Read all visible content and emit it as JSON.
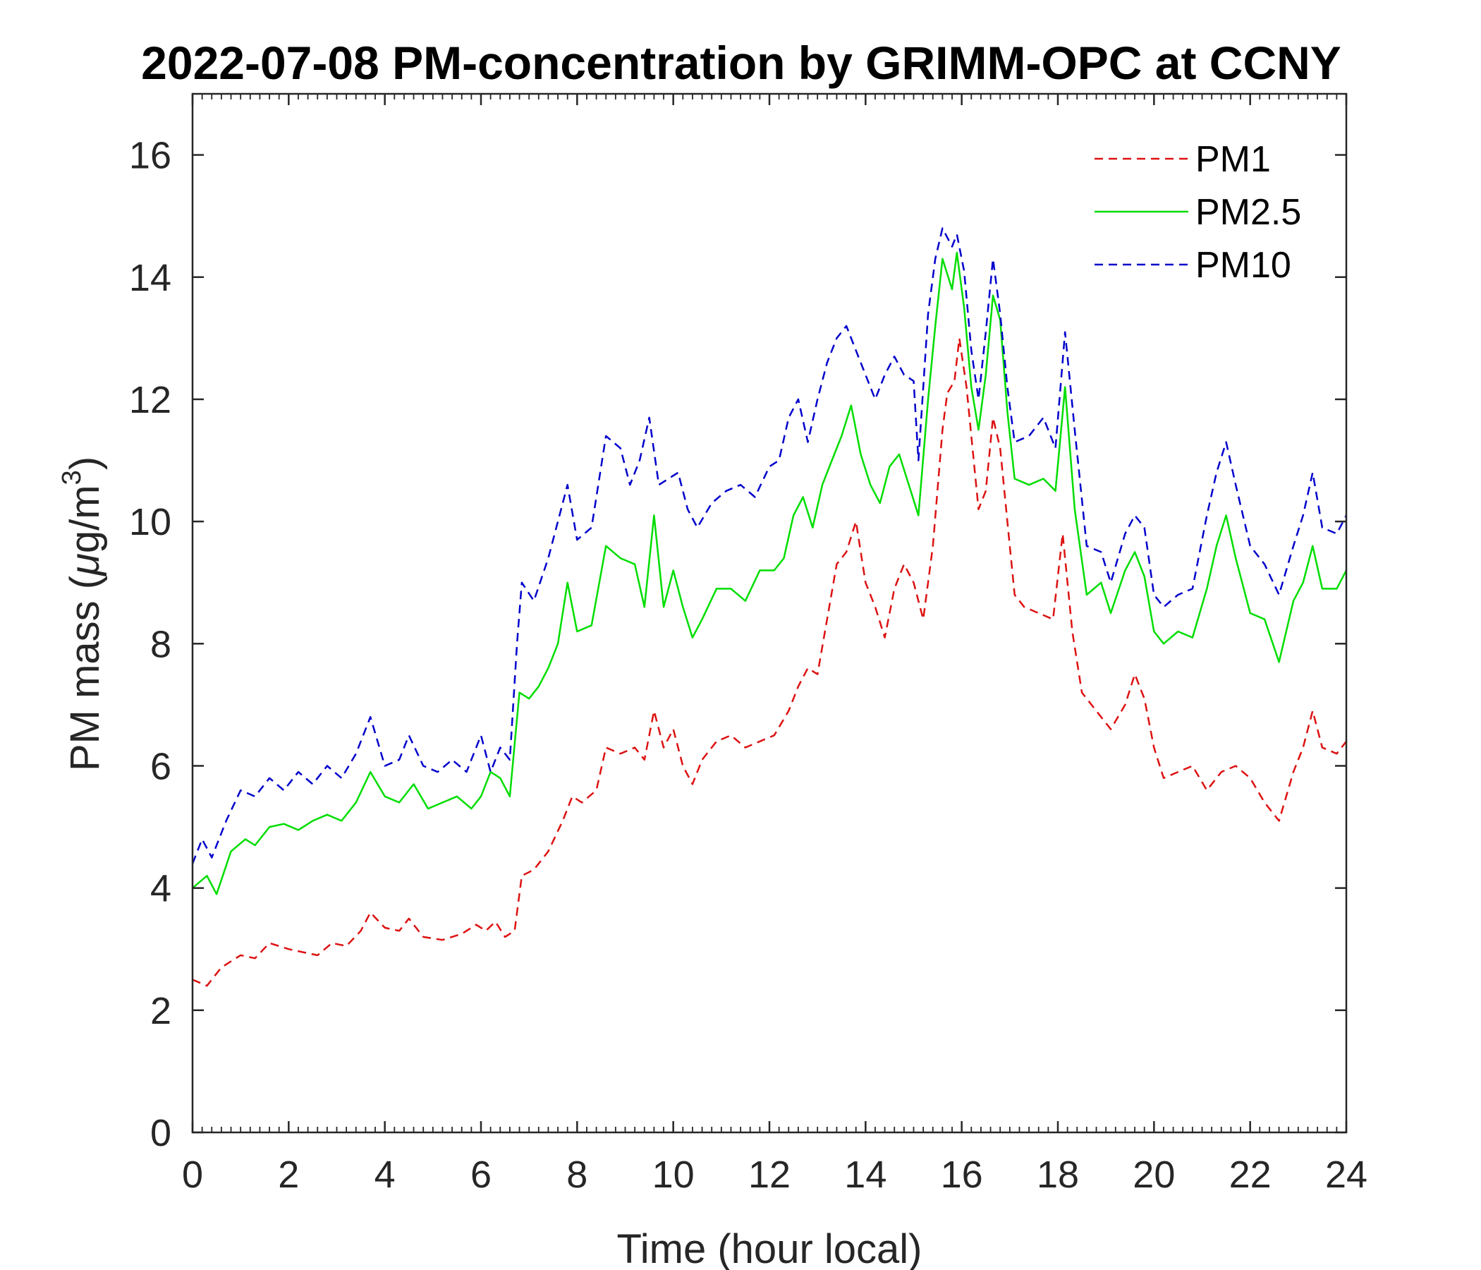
{
  "chart_data": {
    "type": "line",
    "title": "2022-07-08 PM-concentration by GRIMM-OPC at CCNY",
    "xlabel": "Time (hour local)",
    "ylabel_main": "PM mass (",
    "ylabel_mu": "μ",
    "ylabel_unit": "g/m",
    "ylabel_sup": "3",
    "ylabel_close": ")",
    "xlim": [
      0,
      24
    ],
    "ylim": [
      0,
      17
    ],
    "xticks": [
      0,
      2,
      4,
      6,
      8,
      10,
      12,
      14,
      16,
      18,
      20,
      22,
      24
    ],
    "yticks": [
      0,
      2,
      4,
      6,
      8,
      10,
      12,
      14,
      16
    ],
    "xtick_labels": [
      "0",
      "2",
      "4",
      "6",
      "8",
      "10",
      "12",
      "14",
      "16",
      "18",
      "20",
      "22",
      "24"
    ],
    "ytick_labels": [
      "0",
      "2",
      "4",
      "6",
      "8",
      "10",
      "12",
      "14",
      "16"
    ],
    "grid": false,
    "legend_position": "top-right",
    "series": [
      {
        "name": "PM1",
        "color": "#dd1111",
        "dashed": true,
        "points": [
          [
            0,
            2.5
          ],
          [
            0.3,
            2.4
          ],
          [
            0.6,
            2.7
          ],
          [
            1.0,
            2.9
          ],
          [
            1.3,
            2.85
          ],
          [
            1.6,
            3.1
          ],
          [
            2.0,
            3.0
          ],
          [
            2.3,
            2.95
          ],
          [
            2.6,
            2.9
          ],
          [
            2.9,
            3.1
          ],
          [
            3.2,
            3.05
          ],
          [
            3.5,
            3.3
          ],
          [
            3.7,
            3.6
          ],
          [
            4.0,
            3.35
          ],
          [
            4.3,
            3.3
          ],
          [
            4.5,
            3.5
          ],
          [
            4.8,
            3.2
          ],
          [
            5.2,
            3.15
          ],
          [
            5.6,
            3.25
          ],
          [
            5.9,
            3.4
          ],
          [
            6.1,
            3.3
          ],
          [
            6.3,
            3.45
          ],
          [
            6.5,
            3.2
          ],
          [
            6.7,
            3.3
          ],
          [
            6.85,
            4.2
          ],
          [
            7.1,
            4.3
          ],
          [
            7.4,
            4.6
          ],
          [
            7.7,
            5.1
          ],
          [
            7.9,
            5.5
          ],
          [
            8.1,
            5.4
          ],
          [
            8.4,
            5.6
          ],
          [
            8.6,
            6.3
          ],
          [
            8.9,
            6.2
          ],
          [
            9.2,
            6.3
          ],
          [
            9.4,
            6.1
          ],
          [
            9.6,
            6.9
          ],
          [
            9.8,
            6.3
          ],
          [
            10.0,
            6.6
          ],
          [
            10.2,
            6.0
          ],
          [
            10.4,
            5.7
          ],
          [
            10.6,
            6.1
          ],
          [
            10.9,
            6.4
          ],
          [
            11.2,
            6.5
          ],
          [
            11.5,
            6.3
          ],
          [
            11.8,
            6.4
          ],
          [
            12.1,
            6.5
          ],
          [
            12.4,
            6.9
          ],
          [
            12.6,
            7.3
          ],
          [
            12.8,
            7.6
          ],
          [
            13.0,
            7.5
          ],
          [
            13.2,
            8.4
          ],
          [
            13.4,
            9.3
          ],
          [
            13.6,
            9.5
          ],
          [
            13.8,
            10.0
          ],
          [
            14.0,
            9.0
          ],
          [
            14.2,
            8.6
          ],
          [
            14.4,
            8.1
          ],
          [
            14.6,
            8.9
          ],
          [
            14.8,
            9.3
          ],
          [
            15.0,
            9.0
          ],
          [
            15.2,
            8.4
          ],
          [
            15.4,
            9.6
          ],
          [
            15.6,
            11.5
          ],
          [
            15.7,
            12.1
          ],
          [
            15.85,
            12.3
          ],
          [
            15.95,
            13.0
          ],
          [
            16.1,
            12.2
          ],
          [
            16.25,
            11.0
          ],
          [
            16.35,
            10.2
          ],
          [
            16.5,
            10.5
          ],
          [
            16.65,
            11.7
          ],
          [
            16.8,
            11.2
          ],
          [
            16.95,
            10.0
          ],
          [
            17.1,
            8.8
          ],
          [
            17.3,
            8.6
          ],
          [
            17.6,
            8.5
          ],
          [
            17.9,
            8.4
          ],
          [
            18.1,
            9.8
          ],
          [
            18.3,
            8.2
          ],
          [
            18.5,
            7.2
          ],
          [
            18.8,
            6.9
          ],
          [
            19.1,
            6.6
          ],
          [
            19.4,
            7.0
          ],
          [
            19.6,
            7.5
          ],
          [
            19.8,
            7.1
          ],
          [
            20.0,
            6.3
          ],
          [
            20.2,
            5.8
          ],
          [
            20.5,
            5.9
          ],
          [
            20.8,
            6.0
          ],
          [
            21.1,
            5.6
          ],
          [
            21.4,
            5.9
          ],
          [
            21.7,
            6.0
          ],
          [
            22.0,
            5.8
          ],
          [
            22.3,
            5.4
          ],
          [
            22.6,
            5.1
          ],
          [
            22.9,
            5.9
          ],
          [
            23.1,
            6.3
          ],
          [
            23.3,
            6.9
          ],
          [
            23.5,
            6.3
          ],
          [
            23.8,
            6.2
          ],
          [
            24.0,
            6.4
          ]
        ]
      },
      {
        "name": "PM2.5",
        "color": "#00dd00",
        "dashed": false,
        "points": [
          [
            0,
            4.0
          ],
          [
            0.3,
            4.2
          ],
          [
            0.5,
            3.9
          ],
          [
            0.8,
            4.6
          ],
          [
            1.1,
            4.8
          ],
          [
            1.3,
            4.7
          ],
          [
            1.6,
            5.0
          ],
          [
            1.9,
            5.05
          ],
          [
            2.2,
            4.95
          ],
          [
            2.5,
            5.1
          ],
          [
            2.8,
            5.2
          ],
          [
            3.1,
            5.1
          ],
          [
            3.4,
            5.4
          ],
          [
            3.7,
            5.9
          ],
          [
            4.0,
            5.5
          ],
          [
            4.3,
            5.4
          ],
          [
            4.6,
            5.7
          ],
          [
            4.9,
            5.3
          ],
          [
            5.2,
            5.4
          ],
          [
            5.5,
            5.5
          ],
          [
            5.8,
            5.3
          ],
          [
            6.0,
            5.5
          ],
          [
            6.2,
            5.9
          ],
          [
            6.4,
            5.8
          ],
          [
            6.6,
            5.5
          ],
          [
            6.8,
            7.2
          ],
          [
            7.0,
            7.1
          ],
          [
            7.2,
            7.3
          ],
          [
            7.4,
            7.6
          ],
          [
            7.6,
            8.0
          ],
          [
            7.8,
            9.0
          ],
          [
            8.0,
            8.2
          ],
          [
            8.3,
            8.3
          ],
          [
            8.6,
            9.6
          ],
          [
            8.9,
            9.4
          ],
          [
            9.2,
            9.3
          ],
          [
            9.4,
            8.6
          ],
          [
            9.6,
            10.1
          ],
          [
            9.8,
            8.6
          ],
          [
            10.0,
            9.2
          ],
          [
            10.2,
            8.6
          ],
          [
            10.4,
            8.1
          ],
          [
            10.6,
            8.4
          ],
          [
            10.9,
            8.9
          ],
          [
            11.2,
            8.9
          ],
          [
            11.5,
            8.7
          ],
          [
            11.8,
            9.2
          ],
          [
            12.1,
            9.2
          ],
          [
            12.3,
            9.4
          ],
          [
            12.5,
            10.1
          ],
          [
            12.7,
            10.4
          ],
          [
            12.9,
            9.9
          ],
          [
            13.1,
            10.6
          ],
          [
            13.3,
            11.0
          ],
          [
            13.5,
            11.4
          ],
          [
            13.7,
            11.9
          ],
          [
            13.9,
            11.1
          ],
          [
            14.1,
            10.6
          ],
          [
            14.3,
            10.3
          ],
          [
            14.5,
            10.9
          ],
          [
            14.7,
            11.1
          ],
          [
            14.9,
            10.6
          ],
          [
            15.1,
            10.1
          ],
          [
            15.3,
            12.0
          ],
          [
            15.45,
            13.2
          ],
          [
            15.6,
            14.3
          ],
          [
            15.8,
            13.8
          ],
          [
            15.9,
            14.4
          ],
          [
            16.05,
            13.5
          ],
          [
            16.2,
            12.2
          ],
          [
            16.35,
            11.5
          ],
          [
            16.5,
            12.4
          ],
          [
            16.65,
            13.7
          ],
          [
            16.8,
            13.3
          ],
          [
            16.95,
            11.8
          ],
          [
            17.1,
            10.7
          ],
          [
            17.4,
            10.6
          ],
          [
            17.7,
            10.7
          ],
          [
            17.95,
            10.5
          ],
          [
            18.15,
            12.2
          ],
          [
            18.35,
            10.2
          ],
          [
            18.6,
            8.8
          ],
          [
            18.9,
            9.0
          ],
          [
            19.1,
            8.5
          ],
          [
            19.4,
            9.2
          ],
          [
            19.6,
            9.5
          ],
          [
            19.8,
            9.1
          ],
          [
            20.0,
            8.2
          ],
          [
            20.2,
            8.0
          ],
          [
            20.5,
            8.2
          ],
          [
            20.8,
            8.1
          ],
          [
            21.1,
            8.9
          ],
          [
            21.3,
            9.6
          ],
          [
            21.5,
            10.1
          ],
          [
            21.7,
            9.4
          ],
          [
            22.0,
            8.5
          ],
          [
            22.3,
            8.4
          ],
          [
            22.6,
            7.7
          ],
          [
            22.9,
            8.7
          ],
          [
            23.1,
            9.0
          ],
          [
            23.3,
            9.6
          ],
          [
            23.5,
            8.9
          ],
          [
            23.8,
            8.9
          ],
          [
            24.0,
            9.2
          ]
        ]
      },
      {
        "name": "PM10",
        "color": "#0000cc",
        "dashed": true,
        "points": [
          [
            0,
            4.4
          ],
          [
            0.2,
            4.8
          ],
          [
            0.4,
            4.5
          ],
          [
            0.7,
            5.1
          ],
          [
            1.0,
            5.6
          ],
          [
            1.3,
            5.5
          ],
          [
            1.6,
            5.8
          ],
          [
            1.9,
            5.6
          ],
          [
            2.2,
            5.9
          ],
          [
            2.5,
            5.7
          ],
          [
            2.8,
            6.0
          ],
          [
            3.1,
            5.8
          ],
          [
            3.4,
            6.2
          ],
          [
            3.7,
            6.8
          ],
          [
            4.0,
            6.0
          ],
          [
            4.3,
            6.1
          ],
          [
            4.5,
            6.5
          ],
          [
            4.8,
            6.0
          ],
          [
            5.1,
            5.9
          ],
          [
            5.4,
            6.1
          ],
          [
            5.7,
            5.9
          ],
          [
            6.0,
            6.5
          ],
          [
            6.2,
            5.9
          ],
          [
            6.4,
            6.3
          ],
          [
            6.6,
            6.1
          ],
          [
            6.75,
            8.0
          ],
          [
            6.85,
            9.0
          ],
          [
            7.1,
            8.7
          ],
          [
            7.4,
            9.4
          ],
          [
            7.6,
            10.0
          ],
          [
            7.8,
            10.6
          ],
          [
            8.0,
            9.7
          ],
          [
            8.3,
            9.9
          ],
          [
            8.6,
            11.4
          ],
          [
            8.9,
            11.2
          ],
          [
            9.1,
            10.6
          ],
          [
            9.3,
            11.0
          ],
          [
            9.5,
            11.7
          ],
          [
            9.7,
            10.6
          ],
          [
            9.9,
            10.7
          ],
          [
            10.1,
            10.8
          ],
          [
            10.3,
            10.2
          ],
          [
            10.5,
            9.9
          ],
          [
            10.8,
            10.3
          ],
          [
            11.1,
            10.5
          ],
          [
            11.4,
            10.6
          ],
          [
            11.7,
            10.4
          ],
          [
            12.0,
            10.9
          ],
          [
            12.2,
            11.0
          ],
          [
            12.4,
            11.7
          ],
          [
            12.6,
            12.0
          ],
          [
            12.8,
            11.3
          ],
          [
            13.0,
            12.0
          ],
          [
            13.2,
            12.6
          ],
          [
            13.4,
            13.0
          ],
          [
            13.6,
            13.2
          ],
          [
            13.8,
            12.8
          ],
          [
            14.0,
            12.4
          ],
          [
            14.2,
            12.0
          ],
          [
            14.4,
            12.4
          ],
          [
            14.6,
            12.7
          ],
          [
            14.8,
            12.4
          ],
          [
            15.0,
            12.3
          ],
          [
            15.1,
            11.0
          ],
          [
            15.3,
            13.4
          ],
          [
            15.45,
            14.3
          ],
          [
            15.6,
            14.8
          ],
          [
            15.8,
            14.5
          ],
          [
            15.9,
            14.7
          ],
          [
            16.05,
            14.1
          ],
          [
            16.2,
            12.8
          ],
          [
            16.35,
            12.0
          ],
          [
            16.5,
            13.1
          ],
          [
            16.65,
            14.3
          ],
          [
            16.8,
            13.4
          ],
          [
            16.95,
            12.2
          ],
          [
            17.1,
            11.3
          ],
          [
            17.4,
            11.4
          ],
          [
            17.7,
            11.7
          ],
          [
            17.95,
            11.2
          ],
          [
            18.15,
            13.1
          ],
          [
            18.35,
            11.5
          ],
          [
            18.6,
            9.6
          ],
          [
            18.9,
            9.5
          ],
          [
            19.1,
            9.0
          ],
          [
            19.4,
            9.8
          ],
          [
            19.6,
            10.1
          ],
          [
            19.8,
            9.9
          ],
          [
            20.0,
            8.8
          ],
          [
            20.2,
            8.6
          ],
          [
            20.5,
            8.8
          ],
          [
            20.8,
            8.9
          ],
          [
            21.1,
            10.1
          ],
          [
            21.3,
            10.8
          ],
          [
            21.5,
            11.3
          ],
          [
            21.7,
            10.6
          ],
          [
            22.0,
            9.6
          ],
          [
            22.3,
            9.3
          ],
          [
            22.6,
            8.8
          ],
          [
            22.9,
            9.6
          ],
          [
            23.1,
            10.1
          ],
          [
            23.3,
            10.8
          ],
          [
            23.5,
            9.9
          ],
          [
            23.8,
            9.8
          ],
          [
            24.0,
            10.1
          ]
        ]
      }
    ]
  }
}
